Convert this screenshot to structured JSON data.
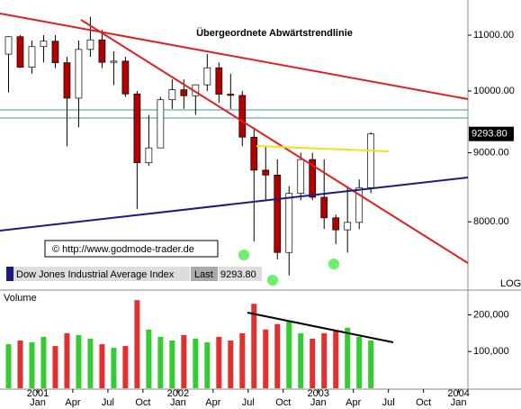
{
  "chart_data": [
    {
      "type": "candlestick",
      "title": "Dow Jones Industrial Average Index",
      "last_text": "Last",
      "last": {
        "value": 9293.8,
        "label": "9293.80"
      },
      "annotation": "Übergeordnete Abwärtstrendlinie",
      "copyright": "© http://www.godmode-trader.de",
      "scale_label": "LOG",
      "log": true,
      "up_color": "#ffffff",
      "down_color": "#b00000",
      "open": [
        10650,
        10971,
        10414,
        10787,
        10887,
        10495,
        9879,
        10735,
        10912,
        10502,
        10523,
        9950,
        8848,
        9075,
        9852,
        10022,
        9920,
        10106,
        10404,
        9946,
        9925,
        9243,
        8737,
        8664,
        7592,
        8397,
        8896,
        8342,
        8054,
        7891,
        7992,
        8480,
        null,
        null,
        null,
        null,
        null,
        null,
        null,
        null
      ],
      "high": [
        10980,
        11000,
        10900,
        11000,
        11000,
        10600,
        10900,
        11350,
        11100,
        10700,
        10600,
        10000,
        9600,
        9900,
        10200,
        10200,
        10100,
        10650,
        10500,
        10300,
        10000,
        9400,
        9100,
        8900,
        8500,
        9000,
        9000,
        8900,
        8100,
        8500,
        8600,
        9320,
        null,
        null,
        null,
        null,
        null,
        null,
        null,
        null
      ],
      "low": [
        9975,
        10400,
        10300,
        10500,
        10400,
        9100,
        9400,
        10600,
        10400,
        10100,
        9900,
        8175,
        8800,
        9100,
        9700,
        9700,
        9600,
        10000,
        9800,
        9700,
        9100,
        7734,
        8300,
        7500,
        7300,
        8300,
        8300,
        7900,
        7700,
        7590,
        7900,
        8400,
        null,
        null,
        null,
        null,
        null,
        null,
        null,
        null
      ],
      "close": [
        10971,
        10414,
        10787,
        10887,
        10495,
        9879,
        10735,
        10912,
        10502,
        10523,
        9950,
        8848,
        9075,
        9852,
        10022,
        9920,
        10106,
        10404,
        9946,
        9925,
        9243,
        8737,
        8664,
        7592,
        8397,
        8896,
        8342,
        8054,
        7891,
        7992,
        8480,
        9293.8,
        null,
        null,
        null,
        null,
        null,
        null,
        null,
        null
      ],
      "ylim": [
        7120,
        11680
      ],
      "yticks": [
        {
          "value": 8000,
          "label": "8000.00"
        },
        {
          "value": 9000,
          "label": "9000.00"
        },
        {
          "value": 10000,
          "label": "10000.00"
        },
        {
          "value": 11000,
          "label": "11000.00"
        }
      ]
    },
    {
      "type": "bar",
      "title": "Volume",
      "up_color": "#33cc33",
      "down_color": "#e03030",
      "categories": [
        null,
        null,
        null,
        "Jan",
        null,
        null,
        "Apr",
        null,
        null,
        "Jul",
        null,
        null,
        "Oct",
        null,
        null,
        "Jan",
        null,
        null,
        "Apr",
        null,
        null,
        "Jul",
        null,
        null,
        "Oct",
        null,
        null,
        "Jan",
        null,
        null,
        "Apr",
        null,
        null,
        "Jul",
        null,
        null,
        "Oct",
        null,
        null,
        "Jan"
      ],
      "years": [
        null,
        null,
        null,
        "2001",
        null,
        null,
        null,
        null,
        null,
        null,
        null,
        null,
        null,
        null,
        null,
        "2002",
        null,
        null,
        null,
        null,
        null,
        null,
        null,
        null,
        null,
        null,
        null,
        "2003",
        null,
        null,
        null,
        null,
        null,
        null,
        null,
        null,
        null,
        null,
        null,
        "2004"
      ],
      "values": [
        120000,
        130000,
        125000,
        140000,
        115000,
        150000,
        145000,
        135000,
        120000,
        110000,
        115000,
        240000,
        160000,
        140000,
        130000,
        145000,
        135000,
        125000,
        140000,
        130000,
        150000,
        230000,
        160000,
        175000,
        185000,
        150000,
        135000,
        150000,
        155000,
        165000,
        140000,
        130000,
        null,
        null,
        null,
        null,
        null,
        null,
        null,
        null
      ],
      "ylim": [
        0,
        260000
      ],
      "yticks": [
        {
          "value": 100000,
          "label": "100,000"
        },
        {
          "value": 200000,
          "label": "200,000"
        }
      ]
    }
  ]
}
